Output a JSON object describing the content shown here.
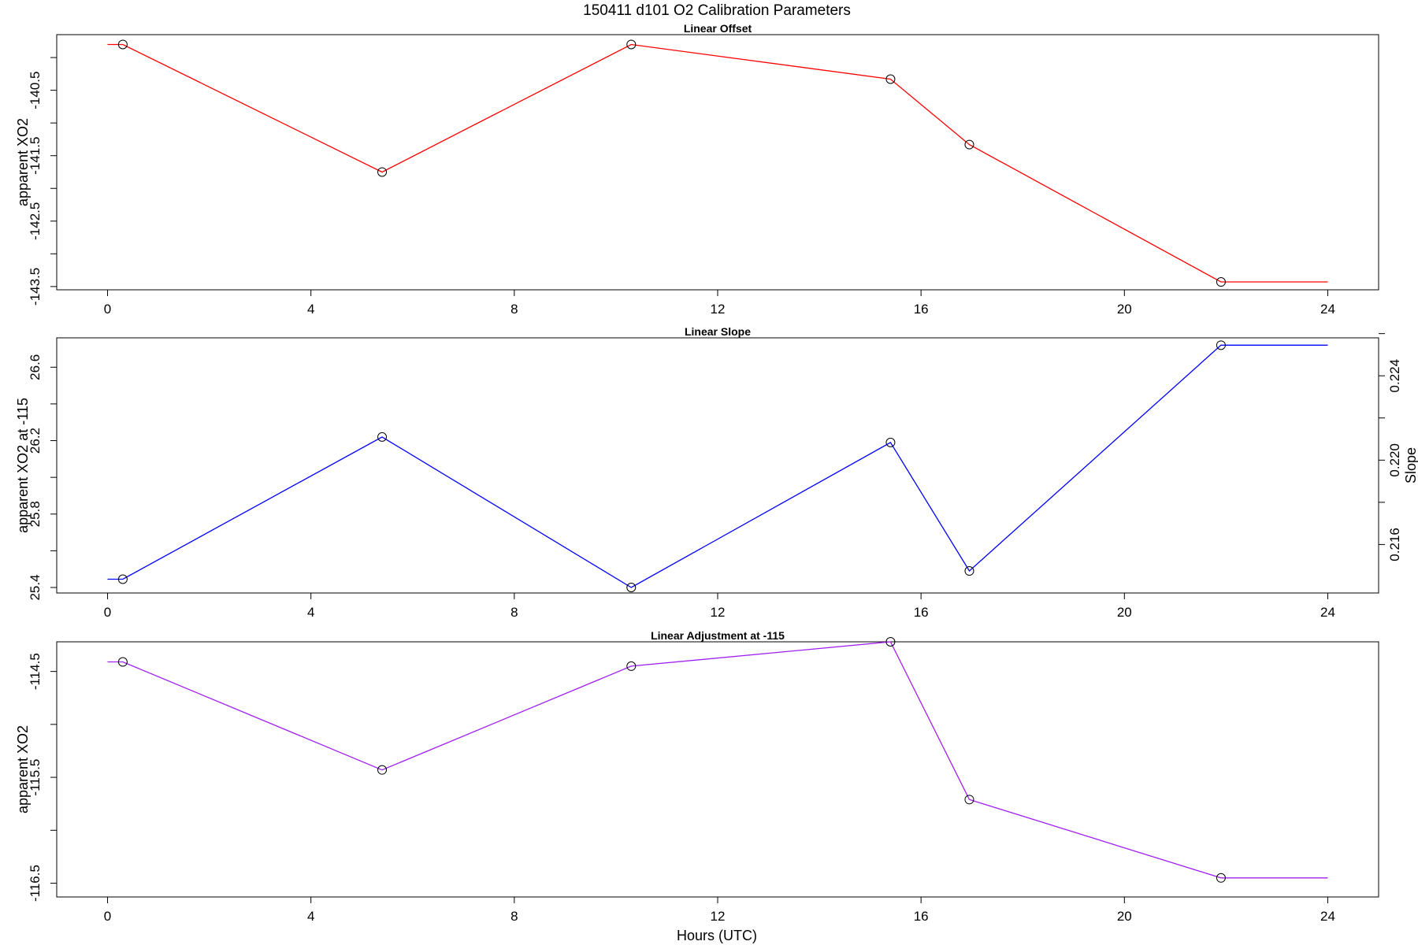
{
  "title": "150411   d101   O2 Calibration Parameters",
  "xlabel": "Hours (UTC)",
  "chart_data": [
    {
      "type": "line",
      "title": "Linear Offset",
      "ylabel": "apparent XO2",
      "color": "#ff0000",
      "xlim": [
        -1.0,
        25.0
      ],
      "ylim": [
        -143.55,
        -139.65
      ],
      "x_ticks": [
        0,
        4,
        8,
        12,
        16,
        20,
        24
      ],
      "y_ticks": [
        -143.5,
        -143.0,
        -142.5,
        -142.0,
        -141.5,
        -141.0,
        -140.5,
        -140.0
      ],
      "y_tick_labels": [
        {
          "value": -143.5,
          "label": "-143.5"
        },
        {
          "value": -142.5,
          "label": "-142.5"
        },
        {
          "value": -141.5,
          "label": "-141.5"
        },
        {
          "value": -140.5,
          "label": "-140.5"
        }
      ],
      "line_x": [
        0.0,
        0.3,
        5.4,
        10.3,
        15.4,
        16.95,
        21.9,
        24.0
      ],
      "line_y": [
        -139.8,
        -139.8,
        -141.75,
        -139.8,
        -140.33,
        -141.33,
        -143.43,
        -143.43
      ],
      "points_x": [
        0.3,
        5.4,
        10.3,
        15.4,
        16.95,
        21.9
      ],
      "points_y": [
        -139.8,
        -141.75,
        -139.8,
        -140.33,
        -141.33,
        -143.43
      ]
    },
    {
      "type": "line",
      "title": "Linear Slope",
      "ylabel": "apparent XO2 at -115",
      "y2label": "Slope",
      "color": "#0000ff",
      "xlim": [
        -1.0,
        25.0
      ],
      "ylim": [
        25.37,
        26.76
      ],
      "x_ticks": [
        0,
        4,
        8,
        12,
        16,
        20,
        24
      ],
      "y_ticks": [
        25.4,
        25.6,
        25.8,
        26.0,
        26.2,
        26.4,
        26.6
      ],
      "y_tick_labels": [
        {
          "value": 25.4,
          "label": "25.4"
        },
        {
          "value": 25.8,
          "label": "25.8"
        },
        {
          "value": 26.2,
          "label": "26.2"
        },
        {
          "value": 26.6,
          "label": "26.6"
        }
      ],
      "y2lim": [
        0.2137,
        0.2258
      ],
      "y2_ticks": [
        0.216,
        0.218,
        0.22,
        0.222,
        0.224,
        0.226
      ],
      "y2_tick_labels": [
        {
          "value": 0.216,
          "label": "0.216"
        },
        {
          "value": 0.22,
          "label": "0.220"
        },
        {
          "value": 0.224,
          "label": "0.224"
        }
      ],
      "line_x": [
        0.0,
        0.3,
        5.4,
        10.3,
        15.4,
        16.95,
        21.9,
        24.0
      ],
      "line_y": [
        25.445,
        25.445,
        26.22,
        25.4,
        26.19,
        25.49,
        26.72,
        26.72
      ],
      "points_x": [
        0.3,
        5.4,
        10.3,
        15.4,
        16.95,
        21.9
      ],
      "points_y": [
        25.445,
        26.22,
        25.4,
        26.19,
        25.49,
        26.72
      ]
    },
    {
      "type": "line",
      "title": "Linear Adjustment at -115",
      "ylabel": "apparent XO2",
      "color": "#a020f0",
      "xlim": [
        -1.0,
        25.0
      ],
      "ylim": [
        -116.63,
        -114.22
      ],
      "x_ticks": [
        0,
        4,
        8,
        12,
        16,
        20,
        24
      ],
      "y_ticks": [
        -116.5,
        -116.0,
        -115.5,
        -115.0,
        -114.5
      ],
      "y_tick_labels": [
        {
          "value": -116.5,
          "label": "-116.5"
        },
        {
          "value": -115.5,
          "label": "-115.5"
        },
        {
          "value": -114.5,
          "label": "-114.5"
        }
      ],
      "line_x": [
        0.0,
        0.3,
        5.4,
        10.3,
        15.4,
        16.95,
        21.9,
        24.0
      ],
      "line_y": [
        -114.41,
        -114.41,
        -115.43,
        -114.45,
        -114.22,
        -115.71,
        -116.45,
        -116.45
      ],
      "points_x": [
        0.3,
        5.4,
        10.3,
        15.4,
        16.95,
        21.9
      ],
      "points_y": [
        -114.41,
        -115.43,
        -114.45,
        -114.22,
        -115.71,
        -116.45
      ]
    }
  ]
}
